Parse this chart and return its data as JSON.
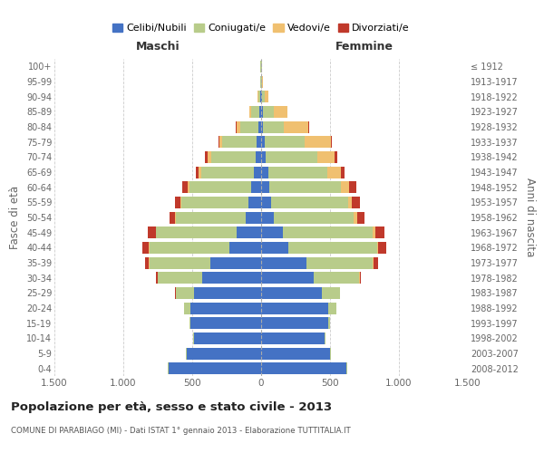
{
  "age_groups": [
    "0-4",
    "5-9",
    "10-14",
    "15-19",
    "20-24",
    "25-29",
    "30-34",
    "35-39",
    "40-44",
    "45-49",
    "50-54",
    "55-59",
    "60-64",
    "65-69",
    "70-74",
    "75-79",
    "80-84",
    "85-89",
    "90-94",
    "95-99",
    "100+"
  ],
  "birth_years": [
    "2008-2012",
    "2003-2007",
    "1998-2002",
    "1993-1997",
    "1988-1992",
    "1983-1987",
    "1978-1982",
    "1973-1977",
    "1968-1972",
    "1963-1967",
    "1958-1962",
    "1953-1957",
    "1948-1952",
    "1943-1947",
    "1938-1942",
    "1933-1937",
    "1928-1932",
    "1923-1927",
    "1918-1922",
    "1913-1917",
    "≤ 1912"
  ],
  "males": {
    "celibi": [
      670,
      540,
      490,
      510,
      510,
      490,
      430,
      370,
      230,
      180,
      110,
      90,
      70,
      55,
      40,
      30,
      20,
      10,
      5,
      2,
      2
    ],
    "coniugati": [
      5,
      5,
      5,
      10,
      50,
      130,
      320,
      440,
      580,
      580,
      510,
      490,
      450,
      380,
      320,
      250,
      130,
      60,
      15,
      3,
      2
    ],
    "vedovi": [
      0,
      0,
      0,
      0,
      0,
      0,
      0,
      5,
      5,
      5,
      5,
      5,
      15,
      20,
      30,
      20,
      30,
      15,
      5,
      0,
      0
    ],
    "divorziati": [
      0,
      0,
      0,
      0,
      0,
      5,
      10,
      30,
      50,
      60,
      40,
      40,
      40,
      20,
      20,
      10,
      5,
      0,
      0,
      0,
      0
    ]
  },
  "females": {
    "nubili": [
      620,
      500,
      460,
      490,
      490,
      440,
      380,
      330,
      200,
      160,
      90,
      70,
      60,
      50,
      35,
      25,
      15,
      10,
      5,
      2,
      2
    ],
    "coniugate": [
      5,
      5,
      5,
      10,
      55,
      130,
      330,
      480,
      640,
      650,
      580,
      560,
      520,
      430,
      370,
      290,
      150,
      80,
      20,
      5,
      2
    ],
    "vedove": [
      0,
      0,
      0,
      0,
      0,
      0,
      5,
      5,
      10,
      20,
      25,
      30,
      60,
      100,
      130,
      190,
      180,
      100,
      30,
      5,
      2
    ],
    "divorziate": [
      0,
      0,
      0,
      0,
      0,
      5,
      10,
      35,
      55,
      65,
      55,
      55,
      50,
      25,
      20,
      10,
      5,
      0,
      0,
      0,
      0
    ]
  },
  "colors": {
    "celibi": "#4472c4",
    "coniugati": "#b8cc8a",
    "vedovi": "#f0c070",
    "divorziati": "#c0392b"
  },
  "legend_labels": [
    "Celibi/Nubili",
    "Coniugati/e",
    "Vedovi/e",
    "Divorziati/e"
  ],
  "title": "Popolazione per età, sesso e stato civile - 2013",
  "subtitle": "COMUNE DI PARABIAGO (MI) - Dati ISTAT 1° gennaio 2013 - Elaborazione TUTTITALIA.IT",
  "ylabel_left": "Fasce di età",
  "ylabel_right": "Anni di nascita",
  "maschi_label": "Maschi",
  "femmine_label": "Femmine",
  "xlim": 1500,
  "background_color": "#ffffff",
  "grid_color": "#cccccc",
  "tick_color": "#666666"
}
